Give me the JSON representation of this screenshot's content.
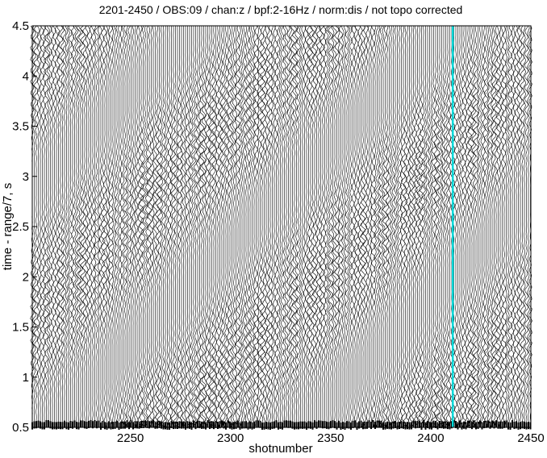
{
  "chart_data": {
    "type": "wiggle",
    "title": "2201-2450 / OBS:09 / chan:z / bpf:2-16Hz / norm:dis / not topo corrected",
    "xlabel": "shotnumber",
    "ylabel": "time - range/7, s",
    "xlim": [
      2201,
      2450
    ],
    "xticks": [
      2250,
      2300,
      2350,
      2400,
      2450
    ],
    "ylim": [
      0.5,
      4.5
    ],
    "yticks": [
      0.5,
      1,
      1.5,
      2,
      2.5,
      3,
      3.5,
      4,
      4.5
    ],
    "highlight_x": 2411,
    "highlight_color": "#00d8d8",
    "trace_color": "#000000"
  }
}
